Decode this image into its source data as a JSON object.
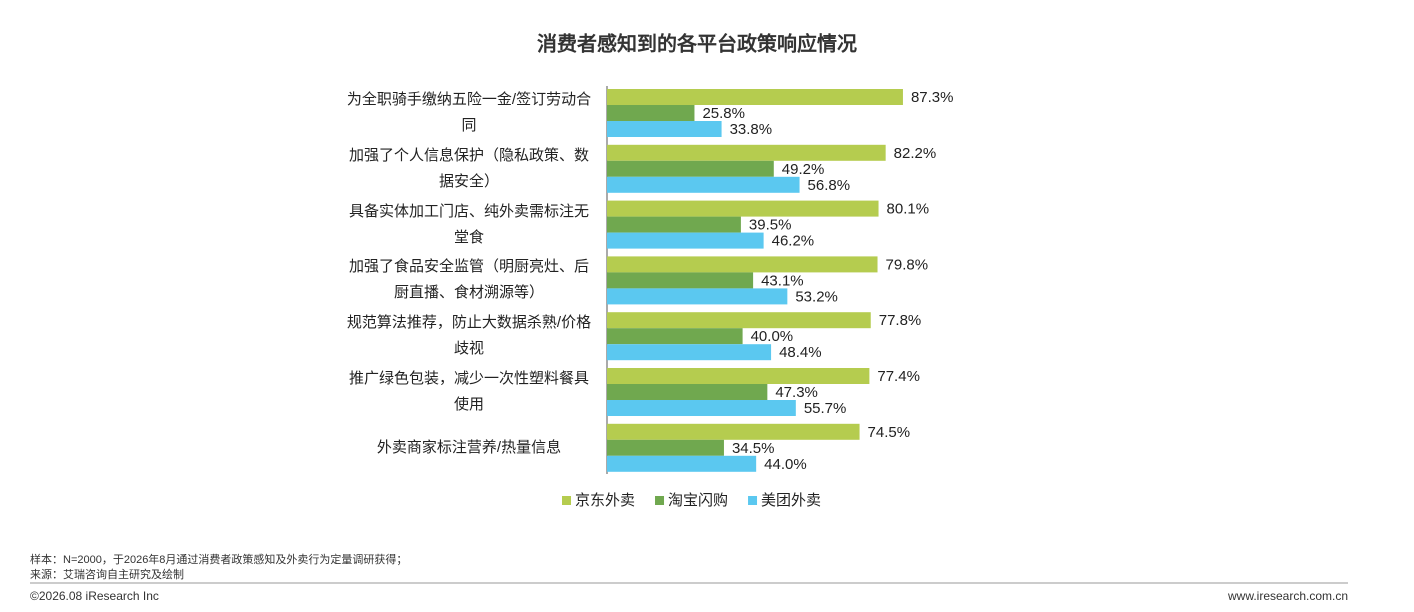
{
  "chart_data": {
    "type": "bar",
    "orientation": "horizontal",
    "title": "消费者感知到的各平台政策响应情况",
    "categories": [
      "为全职骑手缴纳五险一金/签订劳动合同",
      "加强了个人信息保护（隐私政策、数据安全）",
      "具备实体加工门店、纯外卖需标注无堂食",
      "加强了食品安全监管（明厨亮灶、后厨直播、食材溯源等）",
      "规范算法推荐，防止大数据杀熟/价格歧视",
      "推广绿色包装，减少一次性塑料餐具使用",
      "外卖商家标注营养/热量信息"
    ],
    "series": [
      {
        "name": "京东外卖",
        "color": "#b5cc4f",
        "values": [
          87.3,
          82.2,
          80.1,
          79.8,
          77.8,
          77.4,
          74.5
        ],
        "value_labels": [
          "87.3%",
          "82.2%",
          "80.1%",
          "79.8%",
          "77.8%",
          "77.4%",
          "74.5%"
        ]
      },
      {
        "name": "淘宝闪购",
        "color": "#70a84f",
        "values": [
          25.8,
          49.2,
          39.5,
          43.1,
          40.0,
          47.3,
          34.5
        ],
        "value_labels": [
          "25.8%",
          "49.2%",
          "39.5%",
          "43.1%",
          "40.0%",
          "47.3%",
          "34.5%"
        ]
      },
      {
        "name": "美团外卖",
        "color": "#5bc8f0",
        "values": [
          33.8,
          56.8,
          46.2,
          53.2,
          48.4,
          55.7,
          44.0
        ],
        "value_labels": [
          "33.8%",
          "56.8%",
          "46.2%",
          "53.2%",
          "48.4%",
          "55.7%",
          "44.0%"
        ]
      }
    ],
    "xlim": [
      0,
      100
    ],
    "legend": "bottom"
  },
  "footer": {
    "note": "样本：N=2000，于2026年8月通过消费者政策感知及外卖行为定量调研获得；",
    "source": "来源：艾瑞咨询自主研究及绘制",
    "copyright": "©2026.08 iResearch Inc",
    "website": "www.iresearch.com.cn"
  }
}
